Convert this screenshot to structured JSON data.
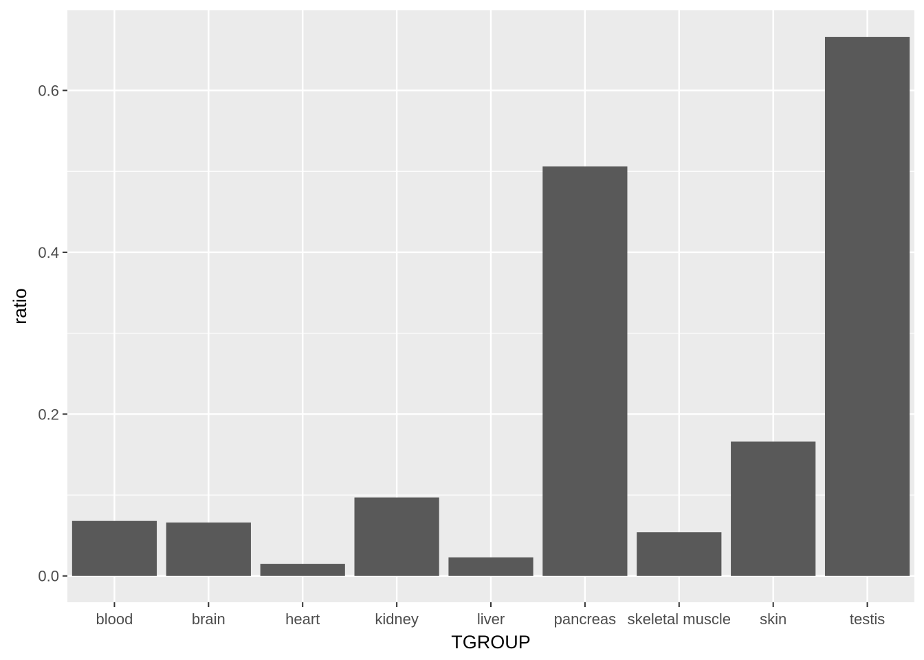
{
  "chart_data": {
    "type": "bar",
    "title": "",
    "xlabel": "TGROUP",
    "ylabel": "ratio",
    "categories": [
      "blood",
      "brain",
      "heart",
      "kidney",
      "liver",
      "pancreas",
      "skeletal muscle",
      "skin",
      "testis"
    ],
    "values": [
      0.068,
      0.066,
      0.015,
      0.097,
      0.023,
      0.506,
      0.054,
      0.166,
      0.666
    ],
    "ylim": [
      -0.0325,
      0.699
    ],
    "yticks": [
      0.0,
      0.2,
      0.4,
      0.6
    ],
    "ytick_labels": [
      "0.0",
      "0.2",
      "0.4",
      "0.6"
    ],
    "grid": true,
    "colors": {
      "panel_background": "#ebebeb",
      "grid_major": "#ffffff",
      "grid_minor": "#f5f5f5",
      "bar_fill": "#595959",
      "tick_text": "#4d4d4d",
      "tick_mark": "#333333"
    }
  }
}
